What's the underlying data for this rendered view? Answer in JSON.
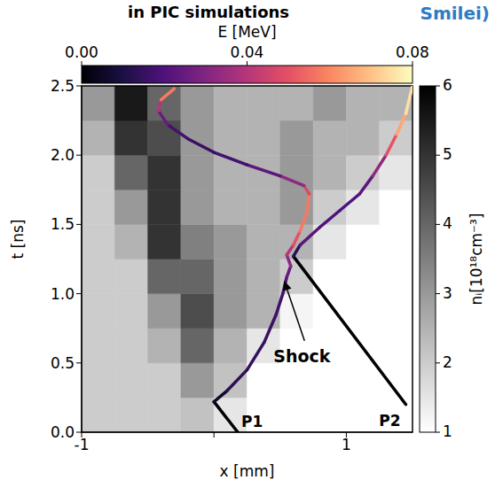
{
  "chart_data": {
    "type": "heatmap",
    "title": "in PIC simulations",
    "logo": "Smilei)",
    "x_label": "x [mm]",
    "y_label": "t [ns]",
    "xlim": [
      -1,
      1.5
    ],
    "xticks": [
      -1,
      0,
      1
    ],
    "ylim": [
      0,
      2.5
    ],
    "yticks": [
      {
        "value": 0,
        "label": "0.0"
      },
      {
        "value": 0.5,
        "label": "0.5"
      },
      {
        "value": 1,
        "label": "1.0"
      },
      {
        "value": 1.5,
        "label": "1.5"
      },
      {
        "value": 2,
        "label": "2.0"
      },
      {
        "value": 2.5,
        "label": "2.5"
      }
    ],
    "annotations": [
      "Shock"
    ],
    "heatmap": {
      "x_edges": [
        -1,
        -0.75,
        -0.5,
        -0.25,
        0,
        0.25,
        0.5,
        0.75,
        1,
        1.25,
        1.5
      ],
      "t_edges": [
        0,
        0.25,
        0.5,
        0.75,
        1,
        1.25,
        1.5,
        1.75,
        2,
        2.25,
        2.5
      ],
      "cells": [
        [
          2,
          2,
          2,
          2.2,
          1.5,
          1,
          1,
          1,
          1,
          1
        ],
        [
          2,
          2,
          2,
          3,
          2.2,
          1,
          1,
          1,
          1,
          1
        ],
        [
          2,
          2,
          2.5,
          4,
          2.5,
          1.5,
          1,
          1,
          1,
          1
        ],
        [
          2,
          2,
          3,
          4.5,
          3,
          2.5,
          1.2,
          1,
          1,
          1
        ],
        [
          2,
          2,
          4,
          4,
          3,
          2.5,
          2,
          1,
          1,
          1
        ],
        [
          2,
          2.5,
          5,
          3.5,
          3,
          2.5,
          2.5,
          1.5,
          1,
          1
        ],
        [
          2,
          3,
          5,
          3,
          2.5,
          2.5,
          3,
          2,
          1.5,
          1
        ],
        [
          2,
          4,
          5,
          3,
          2.5,
          2.5,
          3,
          2.5,
          2,
          1.5
        ],
        [
          2.5,
          5,
          4.5,
          3,
          2.5,
          2.5,
          3,
          2.5,
          2.5,
          2
        ],
        [
          3,
          5.5,
          4,
          3,
          2.5,
          2.5,
          2.5,
          3,
          2.5,
          2.5
        ]
      ],
      "colorbar": {
        "label": "nᵢ[10¹⁸cm⁻³]",
        "range": [
          1,
          6
        ],
        "ticks": [
          1,
          2,
          3,
          4,
          5,
          6
        ]
      }
    },
    "series": [
      {
        "name": "P1",
        "x": [
          0.18,
          0.0,
          0.1,
          0.25,
          0.38,
          0.47,
          0.52,
          0.55,
          0.58,
          0.55,
          0.6,
          0.65,
          0.7,
          0.72,
          0.68,
          0.5,
          0.25,
          0.0,
          -0.2,
          -0.35,
          -0.42,
          -0.4,
          -0.3
        ],
        "values": [
          0.0,
          0.22,
          0.3,
          0.45,
          0.65,
          0.85,
          1.0,
          1.12,
          1.2,
          1.28,
          1.35,
          1.45,
          1.58,
          1.72,
          1.78,
          1.85,
          1.93,
          2.02,
          2.12,
          2.22,
          2.32,
          2.4,
          2.48
        ],
        "energy": [
          0,
          0,
          0.012,
          0.014,
          0.015,
          0.016,
          0.018,
          0.02,
          0.03,
          0.035,
          0.045,
          0.055,
          0.06,
          0.055,
          0.04,
          0.025,
          0.02,
          0.015,
          0.015,
          0.02,
          0.03,
          0.05,
          0.065
        ]
      },
      {
        "name": "P2",
        "x": [
          1.45,
          0.6,
          0.65,
          0.8,
          0.95,
          1.1,
          1.2,
          1.3,
          1.38,
          1.45,
          1.5
        ],
        "values": [
          0.2,
          1.27,
          1.35,
          1.48,
          1.6,
          1.72,
          1.85,
          2.0,
          2.15,
          2.3,
          2.5
        ],
        "energy": [
          0,
          0,
          0.025,
          0.02,
          0.02,
          0.02,
          0.025,
          0.04,
          0.06,
          0.07,
          0.08
        ]
      }
    ],
    "energy_colorbar": {
      "label": "E [MeV]",
      "range": [
        0,
        0.08
      ],
      "ticks": [
        {
          "value": 0,
          "label": "0.00"
        },
        {
          "value": 0.04,
          "label": "0.04"
        },
        {
          "value": 0.08,
          "label": "0.08"
        }
      ]
    }
  }
}
